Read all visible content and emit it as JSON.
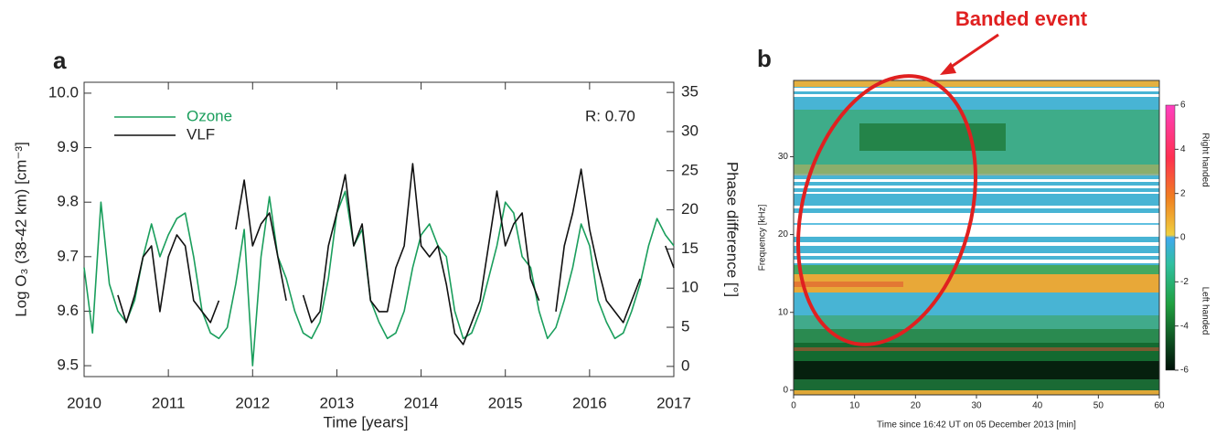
{
  "chart_data": [
    {
      "type": "line",
      "panel_label": "a",
      "x": [
        2010.0,
        2010.1,
        2010.2,
        2010.3,
        2010.4,
        2010.5,
        2010.6,
        2010.7,
        2010.8,
        2010.9,
        2011.0,
        2011.1,
        2011.2,
        2011.3,
        2011.4,
        2011.5,
        2011.6,
        2011.7,
        2011.8,
        2011.9,
        2012.0,
        2012.1,
        2012.2,
        2012.3,
        2012.4,
        2012.5,
        2012.6,
        2012.7,
        2012.8,
        2012.9,
        2013.0,
        2013.1,
        2013.2,
        2013.3,
        2013.4,
        2013.5,
        2013.6,
        2013.7,
        2013.8,
        2013.9,
        2014.0,
        2014.1,
        2014.2,
        2014.3,
        2014.4,
        2014.5,
        2014.6,
        2014.7,
        2014.8,
        2014.9,
        2015.0,
        2015.1,
        2015.2,
        2015.3,
        2015.4,
        2015.5,
        2015.6,
        2015.7,
        2015.8,
        2015.9,
        2016.0,
        2016.1,
        2016.2,
        2016.3,
        2016.4,
        2016.5,
        2016.6,
        2016.7,
        2016.8,
        2016.9,
        2017.0
      ],
      "xlim": [
        2010,
        2017
      ],
      "xticks": [
        2010,
        2011,
        2012,
        2013,
        2014,
        2015,
        2016,
        2017
      ],
      "ylim": [
        9.48,
        10.02
      ],
      "yticks": [
        9.5,
        9.6,
        9.7,
        9.8,
        9.9,
        {
          "value": 10,
          "label": "10.0"
        }
      ],
      "y2lim": [
        -1.3,
        36.3
      ],
      "y2ticks": [
        0,
        5,
        10,
        15,
        20,
        25,
        30,
        35
      ],
      "xlabel": "Time [years]",
      "ylabel": "Log O₃ (38-42 km) [cm⁻³]",
      "y2label": "Phase difference [°]",
      "legend": "upper left",
      "annotation": "R:  0.70",
      "series": [
        {
          "name": "Ozone",
          "color": "#1a9e5c",
          "values": [
            9.68,
            9.56,
            9.8,
            9.65,
            9.6,
            9.58,
            9.62,
            9.7,
            9.76,
            9.7,
            9.74,
            9.77,
            9.78,
            9.7,
            9.6,
            9.56,
            9.55,
            9.57,
            9.65,
            9.75,
            9.5,
            9.7,
            9.81,
            9.7,
            9.66,
            9.6,
            9.56,
            9.55,
            9.58,
            9.66,
            9.78,
            9.82,
            9.72,
            9.75,
            9.62,
            9.58,
            9.55,
            9.56,
            9.6,
            9.68,
            9.74,
            9.76,
            9.72,
            9.7,
            9.6,
            9.55,
            9.56,
            9.6,
            9.66,
            9.72,
            9.8,
            9.78,
            9.7,
            9.68,
            9.6,
            9.55,
            9.57,
            9.62,
            9.68,
            9.76,
            9.72,
            9.62,
            9.58,
            9.55,
            9.56,
            9.6,
            9.65,
            9.72,
            9.77,
            9.74,
            9.72
          ]
        },
        {
          "name": "VLF",
          "color": "#111111",
          "axis": "y2",
          "values": [
            null,
            null,
            null,
            null,
            9.1,
            5.6,
            9.1,
            14,
            15.4,
            7,
            14,
            16.8,
            15.4,
            8.4,
            7,
            5.6,
            8.4,
            null,
            17.5,
            23.8,
            15.4,
            18.2,
            19.6,
            14,
            8.4,
            null,
            9.1,
            5.6,
            7,
            15.4,
            19.6,
            24.5,
            15.4,
            18.2,
            8.4,
            7,
            7,
            12.6,
            15.4,
            25.9,
            15.4,
            14,
            15.4,
            10.5,
            4.2,
            2.8,
            5.6,
            8.4,
            15.4,
            22.4,
            15.4,
            18.2,
            19.6,
            11.2,
            8.4,
            null,
            7,
            15.4,
            19.6,
            25.2,
            17.5,
            12.6,
            8.4,
            7,
            5.6,
            8.4,
            11.2,
            null,
            null,
            15.4,
            12.6
          ]
        }
      ]
    },
    {
      "type": "spectrogram",
      "panel_label": "b",
      "annotation": "Banded event",
      "xlabel": "Time since 16:42 UT on 05 December 2013 [min]",
      "ylabel": "Frequency [kHz]",
      "xlim": [
        0,
        60
      ],
      "xticks": [
        0,
        10,
        20,
        30,
        40,
        50,
        60
      ],
      "ylim": [
        -0.6,
        39.8
      ],
      "yticks": [
        0,
        10,
        20,
        30
      ],
      "colorbar": {
        "lim": [
          -6,
          6
        ],
        "ticks": [
          -6,
          -4,
          -2,
          0,
          2,
          4,
          6
        ],
        "labels": [
          "Right handed",
          "Left handed"
        ]
      }
    }
  ]
}
